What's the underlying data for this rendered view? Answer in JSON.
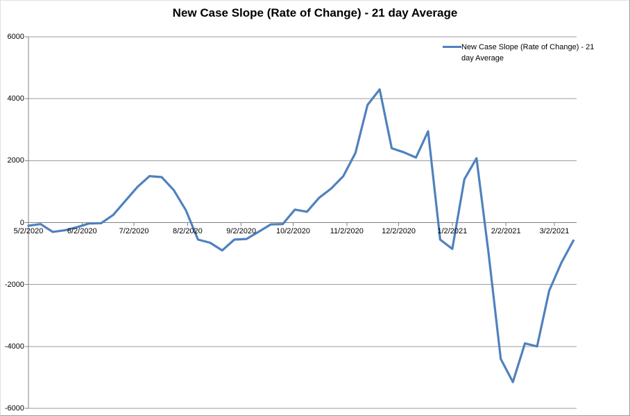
{
  "title": "New Case Slope (Rate of Change) - 21 day Average",
  "legend": {
    "label": "New Case Slope (Rate of Change) - 21 day Average",
    "position": "top-right"
  },
  "colors": {
    "series": "#4F81BD",
    "gridline": "#9b9b9b",
    "axis": "#808080",
    "text": "#000000",
    "background": "#FFFFFF"
  },
  "y_axis": {
    "tick_labels": [
      "6000",
      "4000",
      "2000",
      "0",
      "-2000",
      "-4000",
      "-6000"
    ],
    "tick_values": [
      6000,
      4000,
      2000,
      0,
      -2000,
      -4000,
      -6000
    ]
  },
  "x_axis": {
    "tick_labels": [
      "5/2/2020",
      "6/2/2020",
      "7/2/2020",
      "8/2/2020",
      "9/2/2020",
      "10/2/2020",
      "11/2/2020",
      "12/2/2020",
      "1/2/2021",
      "2/2/2021",
      "3/2/2021"
    ]
  },
  "chart_data": {
    "type": "line",
    "title": "New Case Slope (Rate of Change) - 21 day Average",
    "xlabel": "",
    "ylabel": "",
    "ylim": [
      -6000,
      6000
    ],
    "grid": "horizontal-major",
    "legend_position": "top-right",
    "x": [
      "5/2/2020",
      "5/9/2020",
      "5/16/2020",
      "5/23/2020",
      "5/30/2020",
      "6/6/2020",
      "6/13/2020",
      "6/20/2020",
      "6/27/2020",
      "7/4/2020",
      "7/11/2020",
      "7/18/2020",
      "7/25/2020",
      "8/1/2020",
      "8/8/2020",
      "8/15/2020",
      "8/22/2020",
      "8/29/2020",
      "9/5/2020",
      "9/12/2020",
      "9/19/2020",
      "9/26/2020",
      "10/3/2020",
      "10/10/2020",
      "10/17/2020",
      "10/24/2020",
      "10/31/2020",
      "11/7/2020",
      "11/14/2020",
      "11/21/2020",
      "11/28/2020",
      "12/5/2020",
      "12/12/2020",
      "12/19/2020",
      "12/26/2020",
      "1/2/2021",
      "1/9/2021",
      "1/16/2021",
      "1/23/2021",
      "1/30/2021",
      "2/6/2021",
      "2/13/2021",
      "2/20/2021",
      "2/27/2021",
      "3/6/2021",
      "3/13/2021"
    ],
    "series": [
      {
        "name": "New Case Slope (Rate of Change) - 21 day Average",
        "values": [
          -100,
          -50,
          -300,
          -250,
          -150,
          -30,
          -20,
          250,
          700,
          1150,
          1500,
          1470,
          1050,
          400,
          -550,
          -650,
          -900,
          -550,
          -530,
          -300,
          -60,
          -50,
          420,
          350,
          800,
          1100,
          1500,
          2250,
          3800,
          4300,
          2400,
          2270,
          2100,
          2950,
          -550,
          -850,
          1400,
          2080,
          -1000,
          -4400,
          -5150,
          -3900,
          -4000,
          -2200,
          -1300,
          -580
        ]
      }
    ]
  }
}
